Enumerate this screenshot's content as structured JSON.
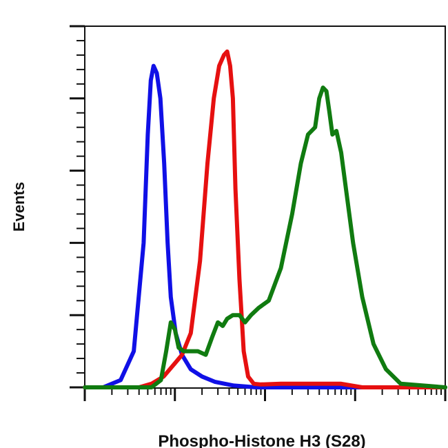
{
  "chart_data": {
    "type": "line",
    "title": "",
    "xlabel": "Phospho-Histone H3 (S28)",
    "ylabel": "Events",
    "x_scale": "log",
    "xlim": [
      1,
      10000
    ],
    "ylim": [
      0,
      100
    ],
    "grid": false,
    "legend": "none",
    "series": [
      {
        "color": "#1010e6",
        "x": [
          1,
          1.6,
          2.5,
          3.5,
          4.5,
          5.0,
          5.4,
          5.8,
          6.3,
          6.9,
          7.6,
          8.3,
          9.0,
          10.2,
          12,
          15,
          20,
          28,
          45,
          80,
          10000
        ],
        "y": [
          0,
          0,
          2,
          10,
          40,
          70,
          85,
          89,
          87,
          80,
          62,
          40,
          25,
          15,
          9,
          5,
          3,
          1.5,
          0.5,
          0,
          0
        ]
      },
      {
        "color": "#e61010",
        "x": [
          1,
          4,
          5.5,
          7.5,
          9.5,
          12,
          15,
          19,
          23,
          27,
          31,
          35,
          38,
          41,
          44,
          47,
          52,
          58,
          65,
          75,
          90,
          150,
          300,
          700,
          1200,
          10000
        ],
        "y": [
          0,
          0,
          1,
          3,
          6,
          9,
          15,
          35,
          62,
          80,
          89,
          92,
          93,
          89,
          80,
          55,
          30,
          10,
          3,
          1,
          0.8,
          1,
          1,
          1,
          0,
          0
        ]
      },
      {
        "color": "#107b10",
        "x": [
          1,
          5.5,
          7,
          8,
          9,
          10,
          11,
          12.5,
          15,
          18,
          22,
          26,
          30,
          34,
          38,
          44,
          52,
          60,
          70,
          85,
          110,
          150,
          200,
          250,
          300,
          360,
          400,
          440,
          480,
          520,
          560,
          620,
          700,
          800,
          950,
          1200,
          1600,
          2200,
          3200,
          10000
        ],
        "y": [
          0,
          0,
          2,
          10,
          18,
          16,
          11,
          10,
          10,
          10,
          9,
          14,
          18,
          17,
          19,
          20,
          20,
          18,
          20,
          22,
          24,
          33,
          48,
          62,
          70,
          72,
          80,
          83,
          82,
          76,
          70,
          71,
          65,
          54,
          40,
          25,
          12,
          5,
          1,
          0
        ]
      }
    ]
  }
}
